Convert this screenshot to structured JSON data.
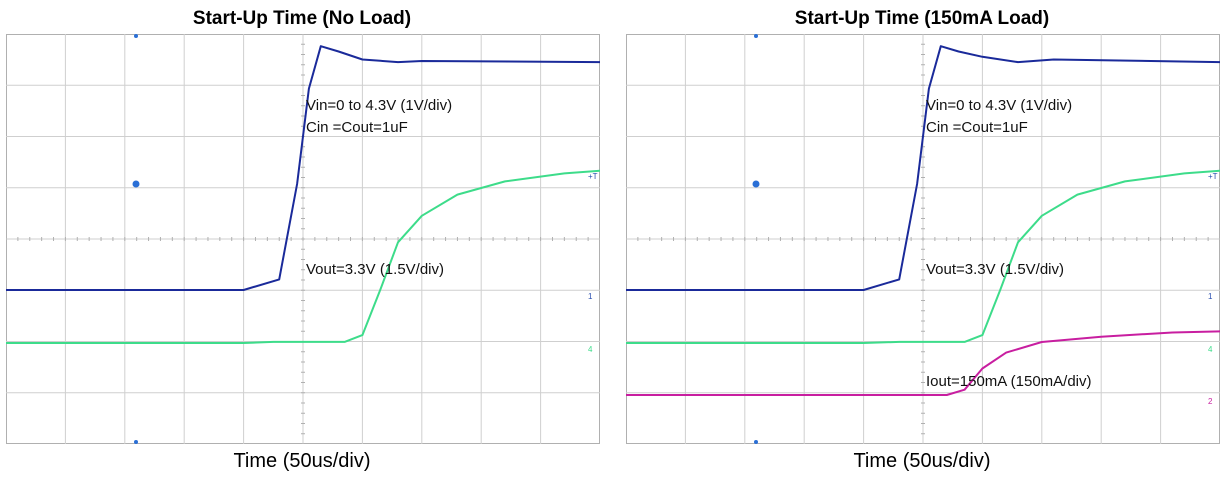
{
  "chart_data": [
    {
      "type": "line",
      "title": "Start-Up Time (No Load)",
      "xlabel": "Time (50us/div)",
      "ylabel": "",
      "grid": true,
      "divisions": {
        "x": 10,
        "y": 8
      },
      "annotations": [
        "Vin=0 to 4.3V (1V/div)",
        "Cin =Cout=1uF",
        "Vout=3.3V (1.5V/div)"
      ],
      "series": [
        {
          "key": "vin",
          "color": "#1a2a9a",
          "points": [
            [
              0,
              0
            ],
            [
              200,
              0
            ],
            [
              230,
              0.2
            ],
            [
              245,
              2.0
            ],
            [
              255,
              3.8
            ],
            [
              265,
              4.6
            ],
            [
              280,
              4.5
            ],
            [
              300,
              4.35
            ],
            [
              330,
              4.3
            ],
            [
              350,
              4.32
            ],
            [
              500,
              4.3
            ]
          ]
        },
        {
          "key": "vout",
          "color": "#3ddc8a",
          "points": [
            [
              0,
              0
            ],
            [
              200,
              0
            ],
            [
              225,
              0.02
            ],
            [
              285,
              0.02
            ],
            [
              300,
              0.15
            ],
            [
              315,
              1.0
            ],
            [
              330,
              1.9
            ],
            [
              350,
              2.4
            ],
            [
              380,
              2.8
            ],
            [
              420,
              3.05
            ],
            [
              470,
              3.2
            ],
            [
              500,
              3.25
            ]
          ]
        }
      ]
    },
    {
      "type": "line",
      "title": "Start-Up Time (150mA Load)",
      "xlabel": "Time (50us/div)",
      "ylabel": "",
      "grid": true,
      "divisions": {
        "x": 10,
        "y": 8
      },
      "annotations": [
        "Vin=0 to 4.3V (1V/div)",
        "Cin =Cout=1uF",
        "Vout=3.3V (1.5V/div)",
        "Iout=150mA (150mA/div)"
      ],
      "series": [
        {
          "key": "vin",
          "color": "#1a2a9a",
          "points": [
            [
              0,
              0
            ],
            [
              200,
              0
            ],
            [
              230,
              0.2
            ],
            [
              245,
              2.0
            ],
            [
              255,
              3.8
            ],
            [
              265,
              4.6
            ],
            [
              280,
              4.5
            ],
            [
              300,
              4.4
            ],
            [
              330,
              4.3
            ],
            [
              360,
              4.35
            ],
            [
              500,
              4.3
            ]
          ]
        },
        {
          "key": "vout",
          "color": "#3ddc8a",
          "points": [
            [
              0,
              0
            ],
            [
              200,
              0
            ],
            [
              230,
              0.02
            ],
            [
              285,
              0.02
            ],
            [
              300,
              0.15
            ],
            [
              315,
              1.0
            ],
            [
              330,
              1.9
            ],
            [
              350,
              2.4
            ],
            [
              380,
              2.8
            ],
            [
              420,
              3.05
            ],
            [
              470,
              3.2
            ],
            [
              500,
              3.25
            ]
          ]
        },
        {
          "key": "iout",
          "color": "#c81ea0",
          "points": [
            [
              0,
              0
            ],
            [
              200,
              0
            ],
            [
              270,
              0
            ],
            [
              285,
              0.1
            ],
            [
              300,
              0.5
            ],
            [
              320,
              0.8
            ],
            [
              350,
              1.0
            ],
            [
              400,
              1.1
            ],
            [
              460,
              1.18
            ],
            [
              500,
              1.2
            ]
          ]
        }
      ]
    }
  ]
}
